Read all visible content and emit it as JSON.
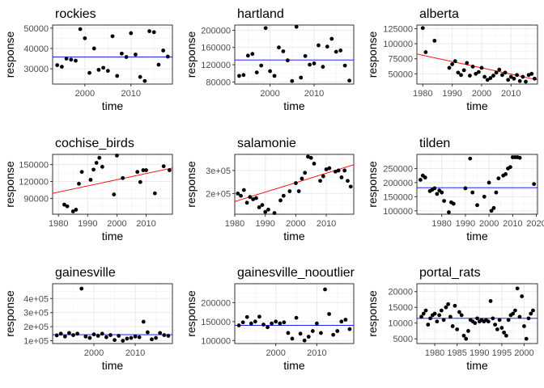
{
  "chart_data": [
    {
      "type": "scatter",
      "title": "rockies",
      "xlabel": "time",
      "ylabel": "response",
      "xlim": [
        1993,
        2019
      ],
      "ylim": [
        22500,
        51500
      ],
      "xticks": [
        2000,
        2010
      ],
      "yticks": [
        30000,
        40000,
        50000
      ],
      "ytick_labels": [
        "30000",
        "40000",
        "50000"
      ],
      "trend": {
        "type": "flat",
        "color": "#0000ff",
        "y0": 35800,
        "y1": 35800
      },
      "x": [
        1994,
        1995,
        1996,
        1997,
        1998,
        1999,
        2000,
        2001,
        2002,
        2003,
        2004,
        2005,
        2006,
        2007,
        2008,
        2009,
        2010,
        2011,
        2012,
        2013,
        2014,
        2015,
        2016,
        2017,
        2018
      ],
      "y": [
        31800,
        31000,
        35000,
        34500,
        34000,
        49500,
        45000,
        28000,
        40000,
        29500,
        30500,
        29000,
        46000,
        26500,
        37500,
        35800,
        47500,
        37000,
        26000,
        24000,
        48500,
        48000,
        32000,
        39000,
        36000
      ]
    },
    {
      "type": "scatter",
      "title": "hartland",
      "xlabel": "time",
      "ylabel": "response",
      "xlim": [
        1992,
        2019
      ],
      "ylim": [
        75000,
        212000
      ],
      "xticks": [
        2000,
        2010
      ],
      "yticks": [
        80000,
        120000,
        160000,
        200000
      ],
      "ytick_labels": [
        "80000",
        "120000",
        "160000",
        "200000"
      ],
      "trend": {
        "type": "flat",
        "color": "#0000ff",
        "y0": 131000,
        "y1": 131000
      },
      "x": [
        1993,
        1994,
        1995,
        1996,
        1997,
        1998,
        1999,
        2000,
        2001,
        2002,
        2003,
        2004,
        2005,
        2006,
        2007,
        2008,
        2009,
        2010,
        2011,
        2012,
        2013,
        2014,
        2015,
        2016,
        2017,
        2018
      ],
      "y": [
        94000,
        96000,
        141000,
        145000,
        102000,
        118000,
        205000,
        105000,
        94000,
        160000,
        151000,
        130000,
        82000,
        208000,
        90000,
        140000,
        120000,
        123000,
        165000,
        115000,
        162000,
        180000,
        150000,
        153000,
        118000,
        83000
      ]
    },
    {
      "type": "scatter",
      "title": "alberta",
      "xlabel": "time",
      "ylabel": "response",
      "xlim": [
        1978,
        2019
      ],
      "ylim": [
        33000,
        131000
      ],
      "xticks": [
        1980,
        1990,
        2000,
        2010
      ],
      "yticks": [
        50000,
        75000,
        100000,
        125000
      ],
      "ytick_labels": [
        "50000",
        "75000",
        "100000",
        "125000"
      ],
      "trend": {
        "type": "linear",
        "color": "#ff0000",
        "y0": 83000,
        "y1": 40000
      },
      "x": [
        1980,
        1981,
        1984,
        1989,
        1990,
        1991,
        1992,
        1993,
        1994,
        1995,
        1996,
        1997,
        1998,
        1999,
        2000,
        2001,
        2002,
        2003,
        2004,
        2005,
        2006,
        2007,
        2008,
        2009,
        2010,
        2011,
        2012,
        2013,
        2014,
        2015,
        2016,
        2017,
        2018
      ],
      "y": [
        126000,
        86000,
        105000,
        60000,
        66000,
        71000,
        52000,
        48000,
        56000,
        68000,
        47000,
        62000,
        50000,
        53000,
        60000,
        45000,
        40000,
        43000,
        47000,
        52000,
        57000,
        48000,
        52000,
        40000,
        45000,
        42000,
        48000,
        38000,
        45000,
        37000,
        48000,
        50000,
        42000
      ]
    },
    {
      "type": "scatter",
      "title": "cochise_birds",
      "xlabel": "time",
      "ylabel": "response",
      "xlim": [
        1978,
        2019
      ],
      "ylim": [
        62000,
        168000
      ],
      "xticks": [
        1980,
        1990,
        2000,
        2010
      ],
      "yticks": [
        90000,
        120000,
        150000
      ],
      "ytick_labels": [
        "90000",
        "120000",
        "150000"
      ],
      "trend": {
        "type": "linear",
        "color": "#ff0000",
        "y0": 99000,
        "y1": 144000
      },
      "x": [
        1982,
        1983,
        1985,
        1986,
        1987,
        1988,
        1991,
        1992,
        1993,
        1994,
        1995,
        1999,
        2000,
        2002,
        2007,
        2008,
        2009,
        2010,
        2013,
        2016,
        2018
      ],
      "y": [
        79000,
        76000,
        67000,
        70000,
        116000,
        137000,
        123000,
        141000,
        153000,
        162000,
        146000,
        97000,
        166000,
        126000,
        137000,
        119000,
        140000,
        140000,
        99000,
        147000,
        140000
      ]
    },
    {
      "type": "scatter",
      "title": "salamonie",
      "xlabel": "time",
      "ylabel": "response",
      "xlim": [
        1980,
        2019
      ],
      "ylim": [
        110000,
        370000
      ],
      "xticks": [
        1980,
        1990,
        2000,
        2010
      ],
      "yticks": [
        200000,
        300000
      ],
      "ytick_labels": [
        "2e+05",
        "3e+05"
      ],
      "trend": {
        "type": "linear",
        "color": "#ff0000",
        "y0": 165000,
        "y1": 325000
      },
      "x": [
        1981,
        1982,
        1983,
        1984,
        1985,
        1986,
        1987,
        1988,
        1989,
        1990,
        1991,
        1993,
        1995,
        1996,
        1998,
        2000,
        2001,
        2002,
        2003,
        2004,
        2005,
        2006,
        2008,
        2009,
        2010,
        2011,
        2013,
        2014,
        2015,
        2016,
        2017,
        2018
      ],
      "y": [
        200000,
        190000,
        215000,
        160000,
        185000,
        175000,
        180000,
        140000,
        150000,
        120000,
        130000,
        115000,
        170000,
        190000,
        210000,
        245000,
        210000,
        265000,
        290000,
        360000,
        355000,
        330000,
        255000,
        275000,
        305000,
        310000,
        295000,
        300000,
        270000,
        300000,
        255000,
        230000
      ]
    },
    {
      "type": "scatter",
      "title": "tilden",
      "xlabel": "time",
      "ylabel": "response",
      "xlim": [
        1969.5,
        2020.5
      ],
      "ylim": [
        88000,
        300000
      ],
      "xticks": [
        1980,
        1990,
        2000,
        2010,
        2020
      ],
      "xtick_labels": [
        "1980",
        "1990",
        "2000",
        "2010",
        "2020"
      ],
      "yticks": [
        100000,
        150000,
        200000,
        250000
      ],
      "ytick_labels": [
        "100000",
        "150000",
        "200000",
        "250000"
      ],
      "trend": {
        "type": "flat",
        "color": "#0000ff",
        "y0": 182000,
        "y1": 182000
      },
      "x": [
        1971,
        1972,
        1973,
        1975,
        1976,
        1977,
        1978,
        1979,
        1980,
        1981,
        1983,
        1984,
        1985,
        1990,
        1992,
        1993,
        1995,
        1998,
        2000,
        2001,
        2002,
        2003,
        2004,
        2006,
        2007,
        2008,
        2009,
        2010,
        2011,
        2012,
        2013,
        2019
      ],
      "y": [
        210000,
        225000,
        218000,
        170000,
        175000,
        180000,
        160000,
        172000,
        165000,
        135000,
        95000,
        130000,
        125000,
        180000,
        285000,
        165000,
        120000,
        150000,
        200000,
        100000,
        110000,
        165000,
        215000,
        225000,
        230000,
        250000,
        255000,
        290000,
        290000,
        290000,
        288000,
        195000
      ]
    },
    {
      "type": "scatter",
      "title": "gainesville",
      "xlabel": "time",
      "ylabel": "response",
      "xlim": [
        1990,
        2019
      ],
      "ylim": [
        80000,
        505000
      ],
      "xticks": [
        2000,
        2010
      ],
      "yticks": [
        100000,
        200000,
        300000,
        400000
      ],
      "ytick_labels": [
        "1e+05",
        "2e+05",
        "3e+05",
        "4e+05"
      ],
      "trend": {
        "type": "flat",
        "color": "#0000ff",
        "y0": 143000,
        "y1": 143000
      },
      "x": [
        1991,
        1992,
        1993,
        1994,
        1995,
        1996,
        1997,
        1998,
        1999,
        2000,
        2001,
        2002,
        2003,
        2004,
        2005,
        2006,
        2007,
        2008,
        2009,
        2010,
        2011,
        2012,
        2013,
        2014,
        2015,
        2016,
        2017,
        2018
      ],
      "y": [
        138000,
        150000,
        130000,
        155000,
        140000,
        150000,
        470000,
        130000,
        120000,
        145000,
        135000,
        150000,
        125000,
        140000,
        105000,
        135000,
        100000,
        115000,
        120000,
        130000,
        125000,
        235000,
        160000,
        110000,
        120000,
        155000,
        140000,
        135000
      ]
    },
    {
      "type": "scatter",
      "title": "gainesville_nooutlier",
      "xlabel": "time",
      "ylabel": "response",
      "xlim": [
        1990,
        2019
      ],
      "ylim": [
        92000,
        250000
      ],
      "xticks": [
        2000,
        2010
      ],
      "yticks": [
        100000,
        150000,
        200000
      ],
      "ytick_labels": [
        "100000",
        "150000",
        "200000"
      ],
      "trend": {
        "type": "flat",
        "color": "#0000ff",
        "y0": 140000,
        "y1": 140000
      },
      "x": [
        1991,
        1992,
        1993,
        1994,
        1995,
        1996,
        1997,
        1998,
        1999,
        2000,
        2001,
        2002,
        2003,
        2004,
        2005,
        2006,
        2007,
        2008,
        2009,
        2010,
        2011,
        2012,
        2013,
        2014,
        2015,
        2016,
        2017,
        2018
      ],
      "y": [
        140000,
        148000,
        162000,
        145000,
        150000,
        163000,
        142000,
        135000,
        145000,
        150000,
        145000,
        148000,
        120000,
        105000,
        160000,
        118000,
        100000,
        110000,
        125000,
        145000,
        120000,
        235000,
        170000,
        115000,
        125000,
        150000,
        155000,
        130000
      ]
    },
    {
      "type": "scatter",
      "title": "portal_rats",
      "xlabel": "time",
      "ylabel": "response",
      "xlim": [
        1976,
        2003
      ],
      "ylim": [
        3500,
        22500
      ],
      "xticks": [
        1980,
        1985,
        1990,
        1995,
        2000
      ],
      "xtick_labels": [
        "1980",
        "1985",
        "1990",
        "1995",
        "2000"
      ],
      "yticks": [
        5000,
        10000,
        15000,
        20000
      ],
      "ytick_labels": [
        "5000",
        "10000",
        "15000",
        "20000"
      ],
      "trend": {
        "type": "flat",
        "color": "#0000ff",
        "y0": 11500,
        "y1": 11500
      },
      "x": [
        1977,
        1977.5,
        1978,
        1978.5,
        1979,
        1979.5,
        1980,
        1980.5,
        1981,
        1981.5,
        1982,
        1982.5,
        1983,
        1983.5,
        1984,
        1984.5,
        1985,
        1985.5,
        1986,
        1986.5,
        1987,
        1987.5,
        1988,
        1988.5,
        1989,
        1989.5,
        1990,
        1990.5,
        1991,
        1991.5,
        1992,
        1992.5,
        1993,
        1993.5,
        1994,
        1994.5,
        1995,
        1995.5,
        1996,
        1996.5,
        1997,
        1997.5,
        1998,
        1998.5,
        1999,
        1999.5,
        2000,
        2000.5,
        2001,
        2001.5,
        2002
      ],
      "y": [
        12000,
        13000,
        14000,
        9500,
        11500,
        12500,
        13000,
        10500,
        12500,
        14000,
        11000,
        15000,
        16000,
        12000,
        9000,
        15500,
        8000,
        13500,
        12500,
        6000,
        5000,
        7500,
        11000,
        10500,
        10000,
        11500,
        10500,
        11000,
        10500,
        11000,
        10500,
        17000,
        11500,
        9500,
        8000,
        11000,
        8500,
        7000,
        6000,
        11000,
        12500,
        13000,
        14000,
        21000,
        12000,
        18500,
        9000,
        5000,
        11500,
        13000,
        14000
      ]
    }
  ]
}
